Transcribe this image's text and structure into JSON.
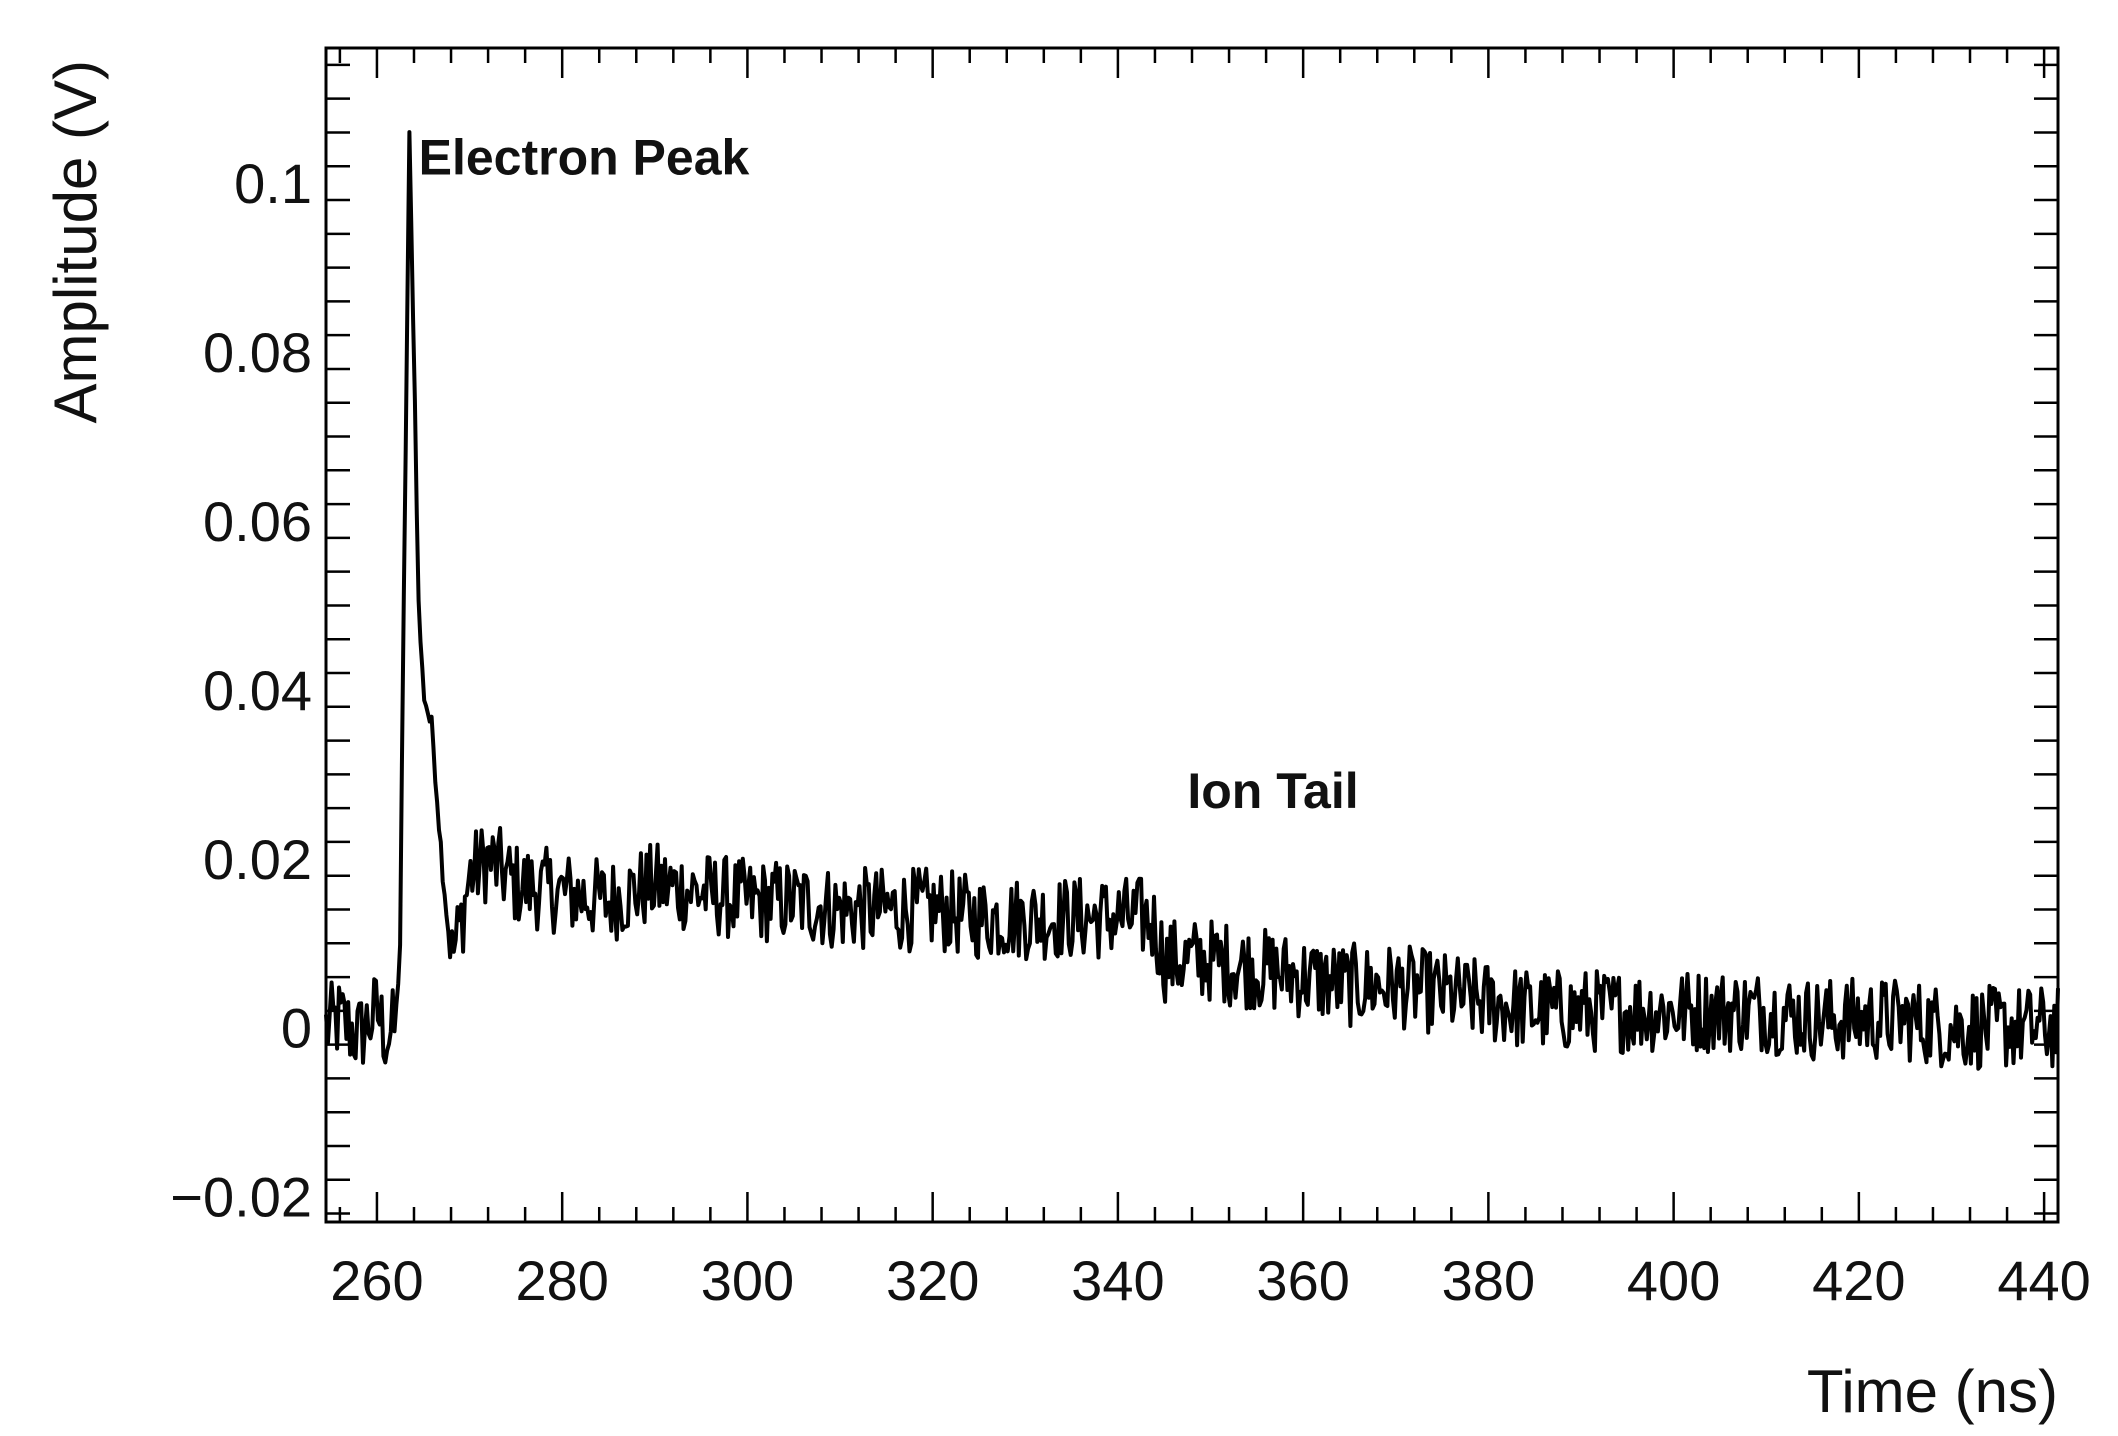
{
  "chart_data": {
    "type": "line",
    "title": "",
    "xlabel": "Time (ns)",
    "ylabel": "Amplitude (V)",
    "xlim": [
      254.5,
      441.5
    ],
    "ylim": [
      -0.023,
      0.116
    ],
    "x_ticks": [
      260,
      280,
      300,
      320,
      340,
      360,
      380,
      400,
      420,
      440
    ],
    "x_tick_labels": [
      "260",
      "280",
      "300",
      "320",
      "340",
      "360",
      "380",
      "400",
      "420",
      "440"
    ],
    "y_ticks": [
      -0.02,
      0,
      0.02,
      0.04,
      0.06,
      0.08,
      0.1
    ],
    "y_tick_labels": [
      "−0.02",
      "0",
      "0.02",
      "0.04",
      "0.06",
      "0.08",
      "0.1"
    ],
    "grid": false,
    "line_color": "#000000",
    "series": [
      {
        "x": [
          254.5,
          256,
          258,
          260,
          261,
          262,
          262.5,
          263,
          263.5,
          264,
          264.5,
          265,
          266,
          267,
          268,
          269,
          270,
          272,
          275,
          280,
          285,
          290,
          295,
          300,
          305,
          310,
          315,
          320,
          325,
          330,
          335,
          340,
          343,
          344,
          345,
          350,
          355,
          360,
          365,
          370,
          375,
          380,
          385,
          390,
          395,
          400,
          405,
          410,
          415,
          420,
          425,
          430,
          435,
          441.5
        ],
        "y": [
          0.0,
          0.001,
          -0.001,
          0.002,
          -0.001,
          0.0,
          0.01,
          0.06,
          0.105,
          0.08,
          0.05,
          0.04,
          0.035,
          0.02,
          0.008,
          0.012,
          0.018,
          0.02,
          0.017,
          0.016,
          0.015,
          0.017,
          0.016,
          0.015,
          0.015,
          0.014,
          0.014,
          0.014,
          0.013,
          0.013,
          0.013,
          0.013,
          0.013,
          0.012,
          0.008,
          0.008,
          0.007,
          0.006,
          0.005,
          0.005,
          0.004,
          0.003,
          0.002,
          0.002,
          0.002,
          0.002,
          0.002,
          0.002,
          0.001,
          0.001,
          0.001,
          0.0,
          0.0,
          0.0
        ]
      }
    ],
    "noise_amplitude": 0.005,
    "annotations": [
      {
        "text": "Electron Peak",
        "x": 264.5,
        "y": 0.101
      },
      {
        "text": "Ion Tail",
        "x": 347.5,
        "y": 0.026
      }
    ]
  }
}
